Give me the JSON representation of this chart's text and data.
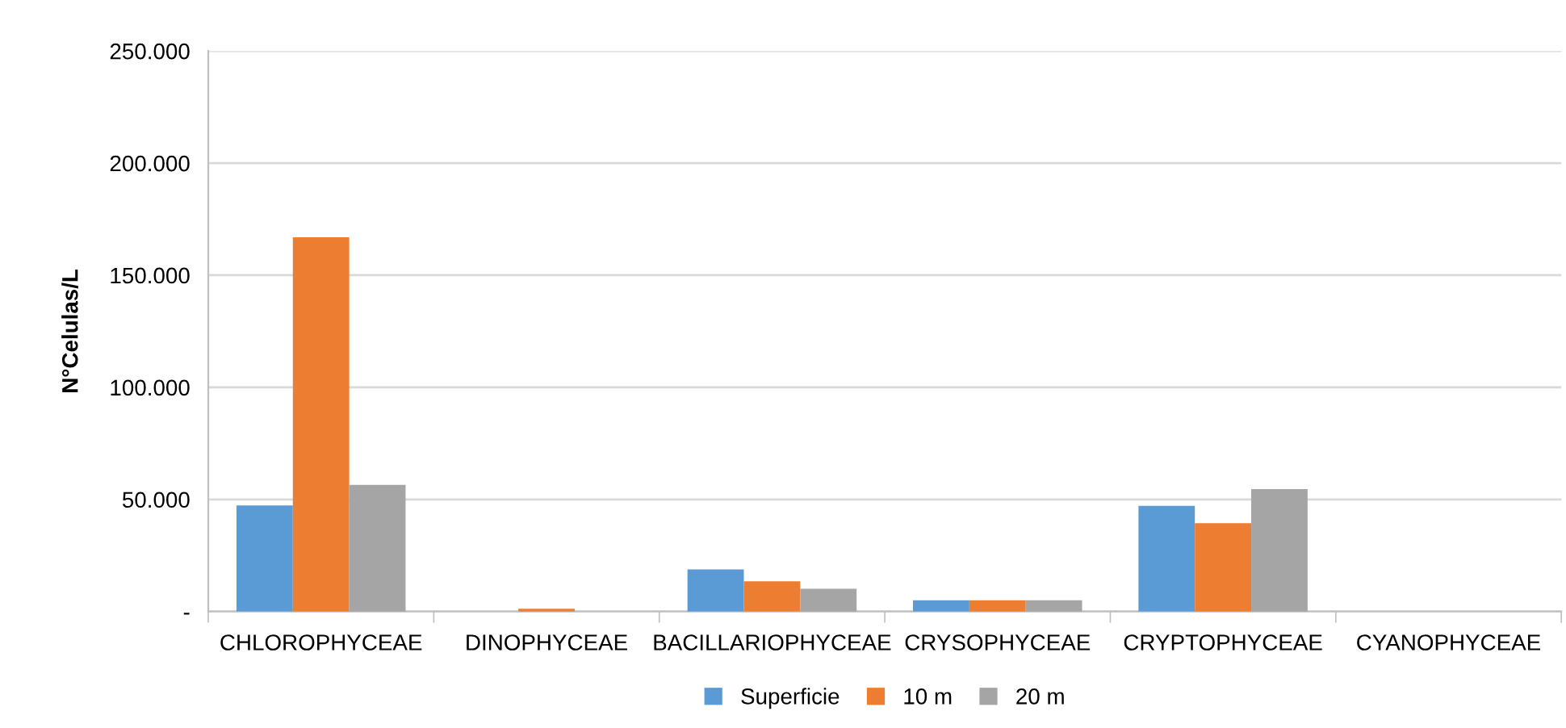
{
  "chart_data": {
    "type": "bar",
    "ylabel": "N°Celulas/L",
    "categories": [
      "CHLOROPHYCEAE",
      "DINOPHYCEAE",
      "BACILLARIOPHYCEAE",
      "CRYSOPHYCEAE",
      "CRYPTOPHYCEAE",
      "CYANOPHYCEAE"
    ],
    "series": [
      {
        "name": "Superficie",
        "color": "#5b9bd5",
        "values": [
          47300,
          0,
          18800,
          5000,
          47100,
          0
        ]
      },
      {
        "name": "10 m",
        "color": "#ed7d31",
        "values": [
          166900,
          1200,
          13500,
          5000,
          39400,
          0
        ]
      },
      {
        "name": "20 m",
        "color": "#a5a5a5",
        "values": [
          56500,
          0,
          10100,
          5000,
          54600,
          0
        ]
      }
    ],
    "ylim": [
      0,
      250000
    ],
    "yticks": [
      {
        "value": 0,
        "label": "-"
      },
      {
        "value": 50000,
        "label": "50.000"
      },
      {
        "value": 100000,
        "label": "100.000"
      },
      {
        "value": 150000,
        "label": "150.000"
      },
      {
        "value": 200000,
        "label": "200.000"
      },
      {
        "value": 250000,
        "label": "250.000"
      }
    ],
    "grid": "y",
    "legend": "bottom"
  }
}
